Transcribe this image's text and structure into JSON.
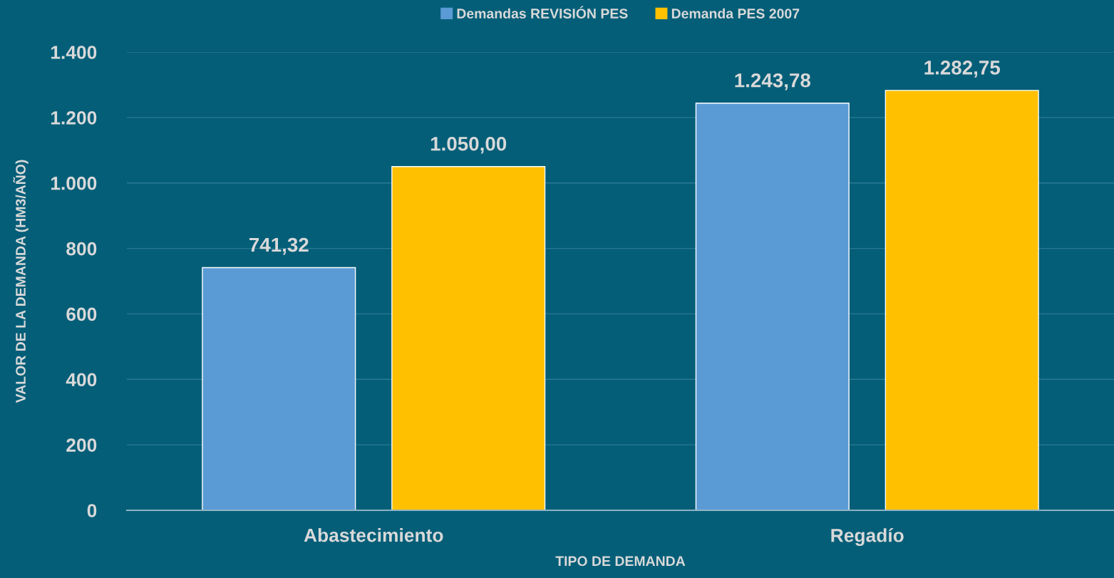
{
  "chart_data": {
    "type": "bar",
    "categories": [
      "Abastecimiento",
      "Regadío"
    ],
    "series": [
      {
        "name": "Demandas REVISIÓN PES",
        "color": "#5b9bd5",
        "values": [
          741.32,
          1243.78
        ],
        "value_labels": [
          "741,32",
          "1.243,78"
        ]
      },
      {
        "name": "Demanda PES 2007",
        "color": "#ffc000",
        "values": [
          1050.0,
          1282.75
        ],
        "value_labels": [
          "1.050,00",
          "1.282,75"
        ]
      }
    ],
    "xlabel": "TIPO DE DEMANDA",
    "ylabel": "VALOR DE LA DEMANDA (HM3/AÑO)",
    "ylim": [
      0,
      1400
    ],
    "yticks": [
      0,
      200,
      400,
      600,
      800,
      {
        "value": 1000,
        "label": "1.000"
      },
      {
        "value": 1200,
        "label": "1.200"
      },
      {
        "value": 1400,
        "label": "1.400"
      }
    ],
    "grid": "y",
    "legend": "top"
  }
}
